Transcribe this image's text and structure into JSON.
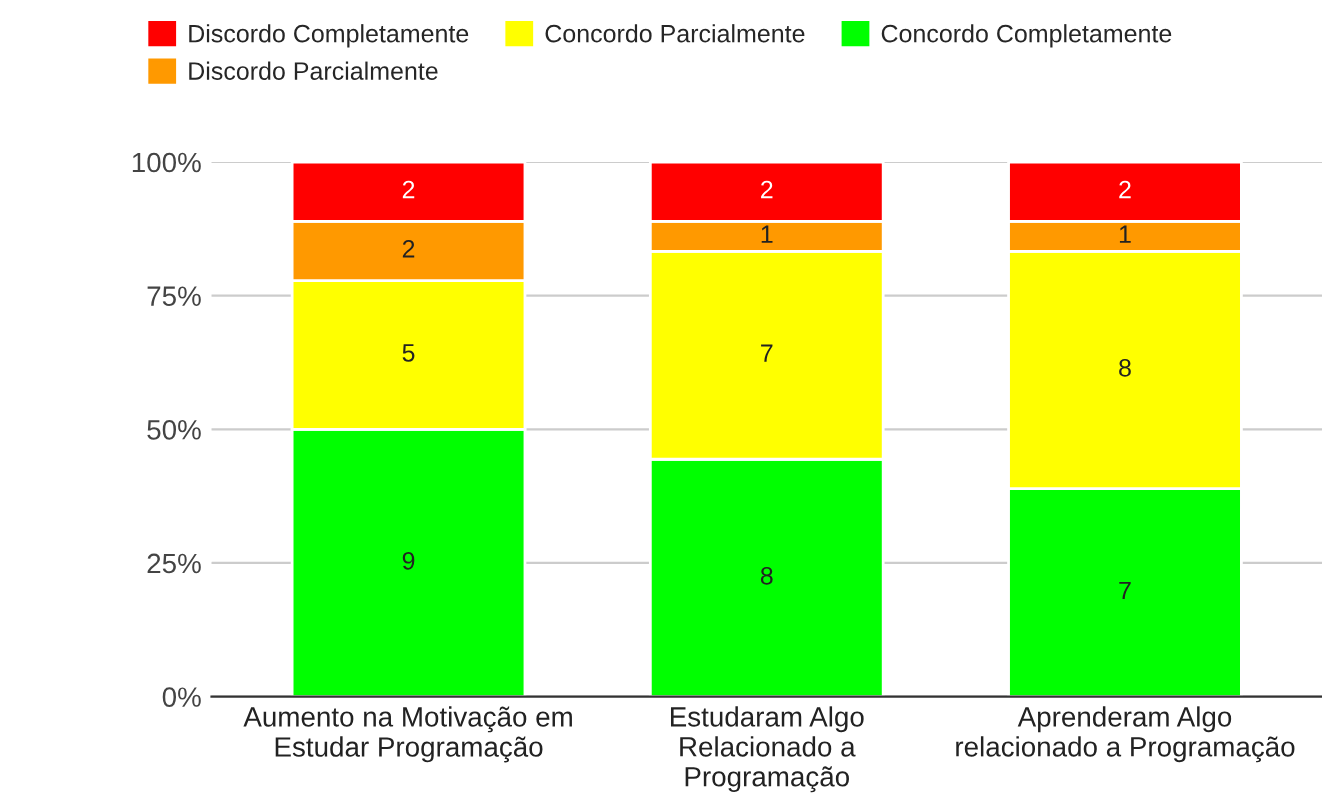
{
  "chart_data": {
    "type": "bar",
    "stacked": true,
    "categories": [
      "Aumento na Motivação em\nEstudar Programação",
      "Estudaram Algo\nRelacionado a\nProgramação",
      "Aprenderam Algo\nrelacionado a Programação"
    ],
    "series": [
      {
        "name": "Concordo Completamente",
        "color": "#00ff00",
        "values": [
          50.0,
          44.4,
          38.9
        ]
      },
      {
        "name": "Concordo Parcialmente",
        "color": "#ffff00",
        "values": [
          27.8,
          38.9,
          44.4
        ]
      },
      {
        "name": "Discordo Parcialmente",
        "color": "#ff9900",
        "values": [
          11.1,
          5.6,
          5.6
        ]
      },
      {
        "name": "Discordo Completamente",
        "color": "#ff0000",
        "values": [
          11.1,
          11.1,
          11.1
        ]
      }
    ],
    "annotations": [
      "9",
      "5",
      "2",
      "2",
      "8",
      "7",
      "1",
      "2",
      "7",
      "8",
      "1",
      "2"
    ],
    "ylim": [
      0,
      100
    ],
    "yticks": [
      {
        "value": 0,
        "label": "0%"
      },
      {
        "value": 25,
        "label": "25%"
      },
      {
        "value": 50,
        "label": "50%"
      },
      {
        "value": 75,
        "label": "75%"
      },
      {
        "value": 100,
        "label": "100%"
      }
    ],
    "grid": "y",
    "legend": "top"
  }
}
